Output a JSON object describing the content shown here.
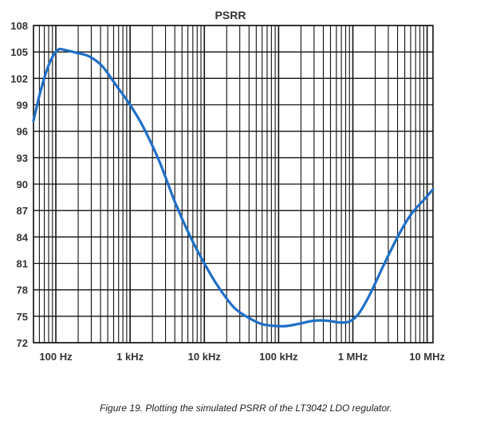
{
  "chart_data": {
    "type": "line",
    "title": "PSRR",
    "xlabel": "",
    "ylabel": "",
    "xscale": "log",
    "xlim": [
      50,
      12000000
    ],
    "ylim": [
      72,
      108
    ],
    "yticks": [
      72,
      75,
      78,
      81,
      84,
      87,
      90,
      93,
      96,
      99,
      102,
      105,
      108
    ],
    "xticks": [
      {
        "value": 100,
        "label": "100 Hz"
      },
      {
        "value": 1000,
        "label": "1 kHz"
      },
      {
        "value": 10000,
        "label": "10 kHz"
      },
      {
        "value": 100000,
        "label": "100 kHz"
      },
      {
        "value": 1000000,
        "label": "1 MHz"
      },
      {
        "value": 10000000,
        "label": "10 MHz"
      }
    ],
    "grid": true,
    "line_color": "#1f6fc7",
    "series": [
      {
        "x": [
          50,
          62,
          80,
          105,
          135,
          190,
          280,
          420,
          650,
          1000,
          1500,
          2500,
          4000,
          6500,
          10000,
          15000,
          25000,
          40000,
          60000,
          90000,
          130000,
          200000,
          300000,
          450000,
          650000,
          900000,
          1200000,
          1700000,
          2500000,
          4000000,
          6000000,
          9000000,
          12000000
        ],
        "y": [
          97.2,
          100.5,
          103.5,
          105.2,
          105.2,
          104.9,
          104.5,
          103.4,
          101.2,
          99.0,
          96.5,
          92.5,
          88.0,
          84.0,
          81.0,
          78.5,
          76.0,
          74.8,
          74.1,
          73.9,
          73.9,
          74.2,
          74.5,
          74.5,
          74.3,
          74.4,
          75.3,
          77.5,
          80.5,
          84.0,
          86.5,
          88.2,
          89.4
        ]
      }
    ]
  },
  "caption": "Figure 19. Plotting the simulated PSRR of the LT3042 LDO regulator."
}
